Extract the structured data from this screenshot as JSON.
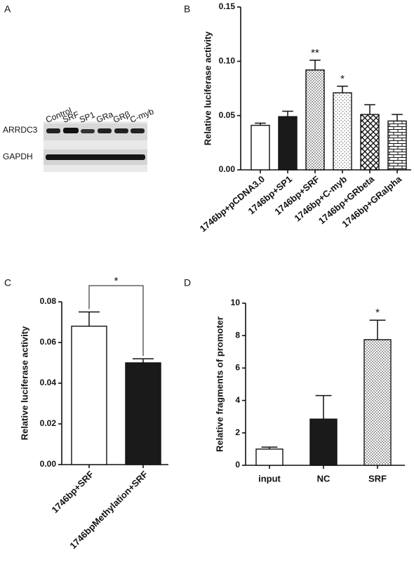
{
  "blot": {
    "panel_label": "A",
    "lanes": [
      "Control",
      "SRF",
      "SP1",
      "GRa",
      "GRβ",
      "C-myb"
    ],
    "rows": [
      "ARRDC3",
      "GAPDH"
    ]
  },
  "chart_data": [
    {
      "type": "bar",
      "panel_label": "B",
      "y_label": "Relative luciferase activity",
      "categories": [
        "1746bp+pCDNA3.0",
        "1746bp+SP1",
        "1746bp+SRF",
        "1746bp+C-myb",
        "1746bp+GRbeta",
        "1746bp+GRalpha"
      ],
      "values": [
        0.041,
        0.049,
        0.092,
        0.071,
        0.051,
        0.045
      ],
      "errors": [
        0.002,
        0.005,
        0.009,
        0.006,
        0.009,
        0.006
      ],
      "significance": [
        null,
        null,
        "**",
        "*",
        null,
        null
      ],
      "fills": [
        "white",
        "black",
        "dots",
        "dots-light",
        "crosshatch",
        "brick"
      ],
      "ylim": [
        0,
        0.15
      ],
      "yticks": [
        {
          "value": 0,
          "label": "0.00"
        },
        {
          "value": 0.05,
          "label": "0.05"
        },
        {
          "value": 0.1,
          "label": "0.10"
        },
        {
          "value": 0.15,
          "label": "0.15"
        }
      ]
    },
    {
      "type": "bar",
      "panel_label": "C",
      "y_label": "Relative luciferase activity",
      "categories": [
        "1746bp+SRF",
        "1746bpMethylation+SRF"
      ],
      "values": [
        0.068,
        0.05
      ],
      "errors": [
        0.007,
        0.002
      ],
      "bracket_label": "*",
      "fills": [
        "white",
        "black"
      ],
      "ylim": [
        0,
        0.08
      ],
      "yticks": [
        {
          "value": 0,
          "label": "0.00"
        },
        {
          "value": 0.02,
          "label": "0.02"
        },
        {
          "value": 0.04,
          "label": "0.04"
        },
        {
          "value": 0.06,
          "label": "0.06"
        },
        {
          "value": 0.08,
          "label": "0.08"
        }
      ]
    },
    {
      "type": "bar",
      "panel_label": "D",
      "y_label": "Relative fragments of promoter",
      "categories": [
        "input",
        "NC",
        "SRF"
      ],
      "values": [
        1.0,
        2.85,
        7.75
      ],
      "errors": [
        0.12,
        1.45,
        1.2
      ],
      "significance": [
        null,
        null,
        "*"
      ],
      "fills": [
        "white",
        "black",
        "dots"
      ],
      "ylim": [
        0,
        10
      ],
      "yticks": [
        0,
        2,
        4,
        6,
        8,
        10
      ]
    }
  ]
}
